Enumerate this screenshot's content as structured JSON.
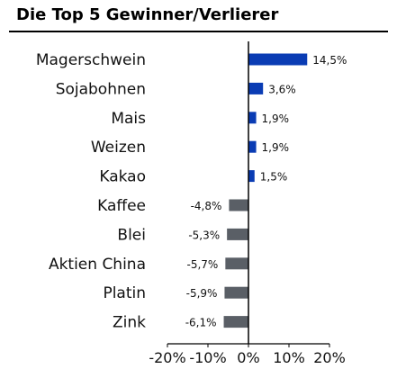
{
  "title": "Die Top 5 Gewinner/Verlierer",
  "chart_data": {
    "type": "bar",
    "orientation": "horizontal",
    "title": "Die Top 5 Gewinner/Verlierer",
    "categories": [
      "Magerschwein",
      "Sojabohnen",
      "Mais",
      "Weizen",
      "Kakao",
      "Kaffee",
      "Blei",
      "Aktien China",
      "Platin",
      "Zink"
    ],
    "values": [
      14.5,
      3.6,
      1.9,
      1.9,
      1.5,
      -4.8,
      -5.3,
      -5.7,
      -5.9,
      -6.1
    ],
    "value_labels": [
      "14,5%",
      "3,6%",
      "1,9%",
      "1,9%",
      "1,5%",
      "-4,8%",
      "-5,3%",
      "-5,7%",
      "-5,9%",
      "-6,1%"
    ],
    "xlim": [
      -20,
      20
    ],
    "xticks": [
      -20,
      -10,
      0,
      10,
      20
    ],
    "xtick_labels": [
      "-20%",
      "-10%",
      "0%",
      "10%",
      "20%"
    ],
    "xlabel": "",
    "ylabel": "",
    "grid": false,
    "colors": {
      "positive": "#0a3cb4",
      "negative": "#5a5f66"
    }
  }
}
